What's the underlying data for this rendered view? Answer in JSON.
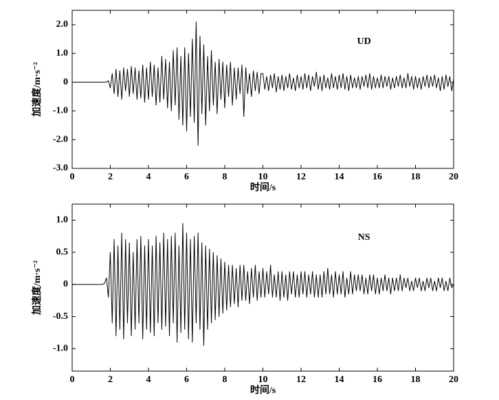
{
  "chart_data": [
    {
      "type": "line",
      "annotation": "UD",
      "x_label": "时间/s",
      "y_label": "加速度/m·s⁻²",
      "xlim": [
        0,
        20
      ],
      "xticks": [
        0,
        2,
        4,
        6,
        8,
        10,
        12,
        14,
        16,
        18,
        20
      ],
      "ylim": [
        -3,
        2.5
      ],
      "yticks": [
        {
          "value": -3,
          "label": "-3.0"
        },
        {
          "value": -2,
          "label": "-2.0"
        },
        {
          "value": -1,
          "label": "-1.0"
        },
        0,
        {
          "value": 1,
          "label": "1.0"
        },
        {
          "value": 2,
          "label": "2.0"
        }
      ],
      "x": [
        0,
        0.1,
        0.2,
        0.3,
        0.4,
        0.5,
        0.6,
        0.7,
        0.8,
        0.9,
        1,
        1.1,
        1.2,
        1.3,
        1.4,
        1.5,
        1.6,
        1.7,
        1.8,
        1.9,
        2,
        2.1,
        2.2,
        2.3,
        2.4,
        2.5,
        2.6,
        2.7,
        2.8,
        2.9,
        3,
        3.1,
        3.2,
        3.3,
        3.4,
        3.5,
        3.6,
        3.7,
        3.8,
        3.9,
        4,
        4.1,
        4.2,
        4.3,
        4.4,
        4.5,
        4.6,
        4.7,
        4.8,
        4.9,
        5,
        5.1,
        5.2,
        5.3,
        5.4,
        5.5,
        5.6,
        5.7,
        5.8,
        5.9,
        6,
        6.1,
        6.2,
        6.3,
        6.4,
        6.5,
        6.6,
        6.7,
        6.8,
        6.9,
        7,
        7.1,
        7.2,
        7.3,
        7.4,
        7.5,
        7.6,
        7.7,
        7.8,
        7.9,
        8,
        8.1,
        8.2,
        8.3,
        8.4,
        8.5,
        8.6,
        8.7,
        8.8,
        8.9,
        9,
        9.1,
        9.2,
        9.3,
        9.4,
        9.5,
        9.6,
        9.7,
        9.8,
        9.9,
        10,
        10.1,
        10.2,
        10.3,
        10.4,
        10.5,
        10.6,
        10.7,
        10.8,
        10.9,
        11,
        11.1,
        11.2,
        11.3,
        11.4,
        11.5,
        11.6,
        11.7,
        11.8,
        11.9,
        12,
        12.1,
        12.2,
        12.3,
        12.4,
        12.5,
        12.6,
        12.7,
        12.8,
        12.9,
        13,
        13.1,
        13.2,
        13.3,
        13.4,
        13.5,
        13.6,
        13.7,
        13.8,
        13.9,
        14,
        14.1,
        14.2,
        14.3,
        14.4,
        14.5,
        14.6,
        14.7,
        14.8,
        14.9,
        15,
        15.1,
        15.2,
        15.3,
        15.4,
        15.5,
        15.6,
        15.7,
        15.8,
        15.9,
        16,
        16.1,
        16.2,
        16.3,
        16.4,
        16.5,
        16.6,
        16.7,
        16.8,
        16.9,
        17,
        17.1,
        17.2,
        17.3,
        17.4,
        17.5,
        17.6,
        17.7,
        17.8,
        17.9,
        18,
        18.1,
        18.2,
        18.3,
        18.4,
        18.5,
        18.6,
        18.7,
        18.8,
        18.9,
        19,
        19.1,
        19.2,
        19.3,
        19.4,
        19.5,
        19.6,
        19.7,
        19.8,
        19.9,
        20
      ],
      "series": [
        {
          "color": "#000000",
          "values": [
            0,
            0,
            0,
            0,
            0,
            0,
            0,
            0,
            0,
            0,
            0,
            0,
            0,
            0,
            0,
            0,
            0,
            0,
            0,
            0.05,
            -0.2,
            0.3,
            -0.4,
            0.45,
            -0.5,
            0.4,
            -0.6,
            0.5,
            -0.3,
            0.45,
            -0.5,
            0.55,
            -0.4,
            0.5,
            -0.6,
            0.4,
            -0.55,
            0.6,
            -0.7,
            0.5,
            -0.6,
            0.7,
            -0.5,
            0.6,
            -0.8,
            0.5,
            -0.7,
            0.9,
            -0.6,
            0.8,
            -0.9,
            0.7,
            -1.0,
            1.1,
            -0.8,
            1.2,
            -1.3,
            0.9,
            -1.5,
            1.2,
            -1.7,
            1.0,
            -1.2,
            1.5,
            -1.4,
            2.1,
            -2.2,
            1.6,
            -1.1,
            1.3,
            -1.5,
            0.9,
            -1.0,
            1.1,
            -0.8,
            0.7,
            -1.1,
            0.8,
            -0.6,
            0.7,
            -0.9,
            0.6,
            -0.5,
            0.7,
            -0.8,
            0.5,
            -0.6,
            0.5,
            -0.4,
            0.6,
            -1.2,
            0.5,
            -0.4,
            0.3,
            -0.5,
            0.4,
            -0.3,
            0.35,
            -0.4,
            0.3,
            0.3,
            -0.25,
            0.2,
            -0.3,
            0.25,
            -0.2,
            0.3,
            -0.35,
            0.2,
            -0.25,
            0.25,
            -0.3,
            0.2,
            -0.2,
            0.3,
            -0.25,
            0.15,
            -0.3,
            0.25,
            -0.2,
            0.2,
            -0.25,
            0.3,
            -0.2,
            0.25,
            -0.3,
            0.2,
            -0.15,
            0.35,
            -0.25,
            0.2,
            -0.3,
            0.25,
            -0.2,
            0.15,
            -0.25,
            0.3,
            -0.2,
            0.2,
            -0.25,
            0.25,
            -0.2,
            0.3,
            -0.25,
            0.2,
            -0.3,
            0.25,
            -0.2,
            0.15,
            -0.2,
            0.2,
            -0.25,
            0.2,
            -0.15,
            0.25,
            -0.2,
            0.3,
            -0.25,
            0.2,
            -0.2,
            0.15,
            -0.2,
            0.25,
            -0.2,
            0.2,
            -0.15,
            0.2,
            -0.25,
            0.15,
            -0.2,
            0.2,
            -0.15,
            0.25,
            -0.2,
            0.15,
            -0.2,
            0.3,
            -0.15,
            0.2,
            -0.25,
            0.2,
            -0.2,
            0.15,
            -0.25,
            0.2,
            -0.15,
            0.25,
            -0.2,
            0.2,
            -0.15,
            0.25,
            -0.2,
            0.15,
            -0.3,
            0.2,
            -0.25,
            0.25,
            -0.15,
            0.2,
            -0.3,
            0.1
          ]
        }
      ]
    },
    {
      "type": "line",
      "annotation": "NS",
      "x_label": "时间/s",
      "y_label": "加速度/m·s⁻²",
      "xlim": [
        0,
        20
      ],
      "xticks": [
        0,
        2,
        4,
        6,
        8,
        10,
        12,
        14,
        16,
        18,
        20
      ],
      "ylim": [
        -1.35,
        1.25
      ],
      "yticks": [
        {
          "value": -1,
          "label": "-1.0"
        },
        -0.5,
        0,
        0.5,
        {
          "value": 1,
          "label": "1.0"
        }
      ],
      "x": [
        0,
        0.1,
        0.2,
        0.3,
        0.4,
        0.5,
        0.6,
        0.7,
        0.8,
        0.9,
        1,
        1.1,
        1.2,
        1.3,
        1.4,
        1.5,
        1.6,
        1.7,
        1.8,
        1.9,
        2,
        2.1,
        2.2,
        2.3,
        2.4,
        2.5,
        2.6,
        2.7,
        2.8,
        2.9,
        3,
        3.1,
        3.2,
        3.3,
        3.4,
        3.5,
        3.6,
        3.7,
        3.8,
        3.9,
        4,
        4.1,
        4.2,
        4.3,
        4.4,
        4.5,
        4.6,
        4.7,
        4.8,
        4.9,
        5,
        5.1,
        5.2,
        5.3,
        5.4,
        5.5,
        5.6,
        5.7,
        5.8,
        5.9,
        6,
        6.1,
        6.2,
        6.3,
        6.4,
        6.5,
        6.6,
        6.7,
        6.8,
        6.9,
        7,
        7.1,
        7.2,
        7.3,
        7.4,
        7.5,
        7.6,
        7.7,
        7.8,
        7.9,
        8,
        8.1,
        8.2,
        8.3,
        8.4,
        8.5,
        8.6,
        8.7,
        8.8,
        8.9,
        9,
        9.1,
        9.2,
        9.3,
        9.4,
        9.5,
        9.6,
        9.7,
        9.8,
        9.9,
        10,
        10.1,
        10.2,
        10.3,
        10.4,
        10.5,
        10.6,
        10.7,
        10.8,
        10.9,
        11,
        11.1,
        11.2,
        11.3,
        11.4,
        11.5,
        11.6,
        11.7,
        11.8,
        11.9,
        12,
        12.1,
        12.2,
        12.3,
        12.4,
        12.5,
        12.6,
        12.7,
        12.8,
        12.9,
        13,
        13.1,
        13.2,
        13.3,
        13.4,
        13.5,
        13.6,
        13.7,
        13.8,
        13.9,
        14,
        14.1,
        14.2,
        14.3,
        14.4,
        14.5,
        14.6,
        14.7,
        14.8,
        14.9,
        15,
        15.1,
        15.2,
        15.3,
        15.4,
        15.5,
        15.6,
        15.7,
        15.8,
        15.9,
        16,
        16.1,
        16.2,
        16.3,
        16.4,
        16.5,
        16.6,
        16.7,
        16.8,
        16.9,
        17,
        17.1,
        17.2,
        17.3,
        17.4,
        17.5,
        17.6,
        17.7,
        17.8,
        17.9,
        18,
        18.1,
        18.2,
        18.3,
        18.4,
        18.5,
        18.6,
        18.7,
        18.8,
        18.9,
        19,
        19.1,
        19.2,
        19.3,
        19.4,
        19.5,
        19.6,
        19.7,
        19.8,
        19.9,
        20
      ],
      "series": [
        {
          "color": "#000000",
          "values": [
            0,
            0,
            0,
            0,
            0,
            0,
            0,
            0,
            0,
            0,
            0,
            0,
            0,
            0,
            0,
            0,
            0,
            0.02,
            0.1,
            -0.2,
            0.5,
            -0.6,
            0.7,
            -0.8,
            0.6,
            -0.7,
            0.8,
            -0.85,
            0.7,
            -0.6,
            0.65,
            -0.8,
            0.5,
            -0.7,
            0.7,
            -0.6,
            0.75,
            -0.85,
            0.6,
            -0.7,
            0.7,
            -0.75,
            0.6,
            -0.8,
            0.75,
            -0.6,
            0.65,
            -0.7,
            0.8,
            -0.65,
            0.7,
            -0.8,
            0.75,
            -0.6,
            0.8,
            -0.9,
            0.6,
            -0.75,
            0.95,
            -0.7,
            0.8,
            -0.85,
            0.7,
            -0.9,
            0.75,
            -0.6,
            0.8,
            -0.7,
            0.65,
            -0.95,
            0.6,
            -0.7,
            0.55,
            -0.6,
            0.5,
            -0.55,
            0.45,
            -0.5,
            0.4,
            -0.45,
            0.35,
            -0.4,
            0.3,
            -0.35,
            0.3,
            -0.3,
            0.25,
            -0.35,
            0.3,
            -0.25,
            0.3,
            -0.25,
            0.2,
            -0.3,
            0.25,
            -0.2,
            0.3,
            -0.25,
            0.2,
            -0.2,
            0.25,
            -0.2,
            0.2,
            -0.15,
            0.3,
            -0.2,
            0.15,
            -0.2,
            0.2,
            -0.25,
            0.2,
            -0.2,
            0.15,
            -0.25,
            0.2,
            -0.15,
            0.2,
            -0.2,
            0.15,
            -0.2,
            0.2,
            -0.15,
            0.2,
            -0.2,
            0.15,
            -0.15,
            0.2,
            -0.2,
            0.15,
            -0.2,
            0.15,
            -0.2,
            0.2,
            -0.15,
            0.25,
            -0.15,
            0.15,
            -0.2,
            0.2,
            -0.15,
            0.15,
            -0.15,
            0.2,
            -0.2,
            0.1,
            -0.15,
            0.2,
            -0.15,
            0.15,
            -0.1,
            0.15,
            -0.1,
            0.15,
            -0.15,
            0.1,
            -0.15,
            0.15,
            -0.1,
            0.15,
            -0.15,
            0.1,
            -0.15,
            0.1,
            -0.1,
            0.15,
            -0.1,
            0.1,
            -0.15,
            0.1,
            -0.1,
            0.1,
            -0.1,
            0.15,
            -0.1,
            0.1,
            -0.05,
            0.1,
            -0.1,
            0.05,
            -0.1,
            0.1,
            -0.05,
            0.1,
            -0.1,
            0.05,
            -0.1,
            0.1,
            -0.05,
            0.1,
            -0.1,
            0.05,
            -0.1,
            0.1,
            -0.05,
            0.1,
            -0.1,
            0.05,
            -0.1,
            0.1,
            -0.05,
            0
          ]
        }
      ]
    }
  ]
}
